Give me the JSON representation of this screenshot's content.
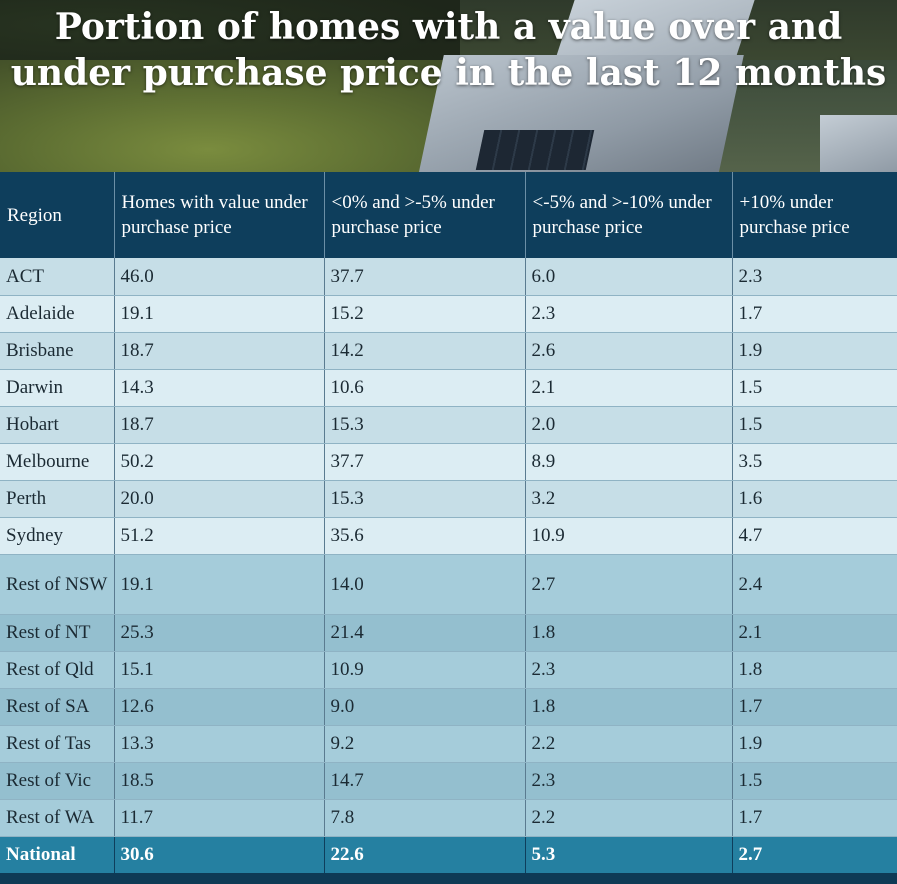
{
  "title": "Portion of homes with a value over and under purchase price in the last 12 months",
  "chart_data": {
    "type": "table",
    "title": "Portion of homes with a value over and under purchase price in the last 12 months",
    "columns": [
      "Region",
      "Homes with value under purchase price",
      "<0% and >-5% under purchase price",
      "<-5% and >-10% under purchase price",
      "+10% under purchase price"
    ],
    "rows": [
      {
        "region": "ACT",
        "values": [
          "46.0",
          "37.7",
          "6.0",
          "2.3"
        ]
      },
      {
        "region": "Adelaide",
        "values": [
          "19.1",
          "15.2",
          "2.3",
          "1.7"
        ]
      },
      {
        "region": "Brisbane",
        "values": [
          "18.7",
          "14.2",
          "2.6",
          "1.9"
        ]
      },
      {
        "region": "Darwin",
        "values": [
          "14.3",
          "10.6",
          "2.1",
          "1.5"
        ]
      },
      {
        "region": "Hobart",
        "values": [
          "18.7",
          "15.3",
          "2.0",
          "1.5"
        ]
      },
      {
        "region": "Melbourne",
        "values": [
          "50.2",
          "37.7",
          "8.9",
          "3.5"
        ]
      },
      {
        "region": "Perth",
        "values": [
          "20.0",
          "15.3",
          "3.2",
          "1.6"
        ]
      },
      {
        "region": "Sydney",
        "values": [
          "51.2",
          "35.6",
          "10.9",
          "4.7"
        ]
      },
      {
        "region": "Rest of NSW",
        "values": [
          "19.1",
          "14.0",
          "2.7",
          "2.4"
        ]
      },
      {
        "region": "Rest of NT",
        "values": [
          "25.3",
          "21.4",
          "1.8",
          "2.1"
        ]
      },
      {
        "region": "Rest of Qld",
        "values": [
          "15.1",
          "10.9",
          "2.3",
          "1.8"
        ]
      },
      {
        "region": "Rest of SA",
        "values": [
          "12.6",
          "9.0",
          "1.8",
          "1.7"
        ]
      },
      {
        "region": "Rest of Tas",
        "values": [
          "13.3",
          "9.2",
          "2.2",
          "1.9"
        ]
      },
      {
        "region": "Rest of Vic",
        "values": [
          "18.5",
          "14.7",
          "2.3",
          "1.5"
        ]
      },
      {
        "region": "Rest of WA",
        "values": [
          "11.7",
          "7.8",
          "2.2",
          "1.7"
        ]
      }
    ],
    "total_row": {
      "region": "National",
      "values": [
        "30.6",
        "22.6",
        "5.3",
        "2.7"
      ]
    }
  },
  "colors": {
    "header_bg": "#0e3e5c",
    "city_row_a": "#c6dee7",
    "city_row_b": "#dcedf3",
    "rest_row_a": "#a5ccda",
    "rest_row_b": "#94bfcf",
    "national_bg": "#2580a1"
  }
}
